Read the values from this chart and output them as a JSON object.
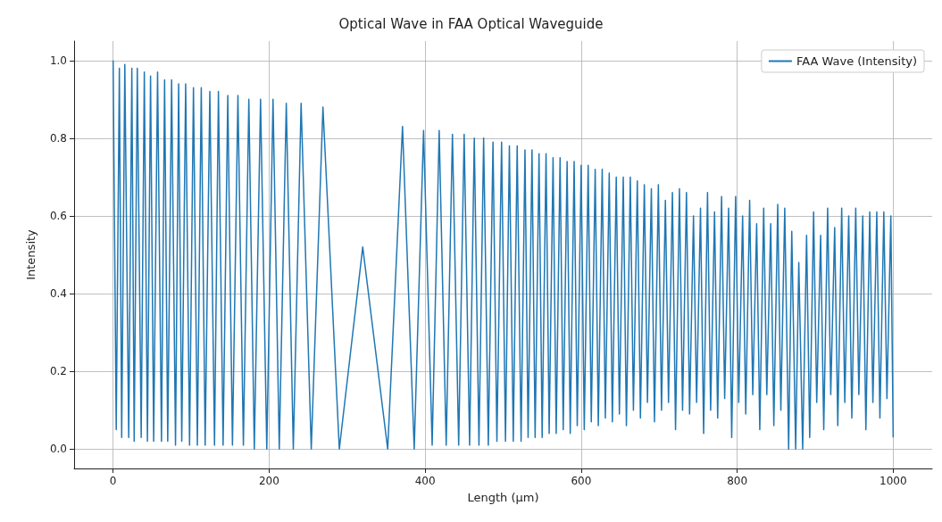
{
  "chart_data": {
    "type": "line",
    "title": "Optical Wave in FAA Optical Waveguide",
    "xlabel": "Length (µm)",
    "ylabel": "Intensity",
    "x": [
      0,
      4,
      8,
      11,
      15,
      20,
      24,
      27,
      31,
      36,
      40,
      44,
      48,
      52,
      57,
      62,
      66,
      70,
      75,
      80,
      84,
      88,
      93,
      98,
      103,
      108,
      113,
      118,
      124,
      130,
      135,
      141,
      147,
      153,
      160,
      167,
      174,
      181,
      189,
      197,
      205,
      213,
      222,
      231,
      241,
      254,
      269,
      290,
      320,
      352,
      371,
      386,
      398,
      409,
      418,
      427,
      435,
      443,
      450,
      457,
      463,
      469,
      475,
      481,
      487,
      492,
      498,
      503,
      508,
      513,
      518,
      523,
      528,
      532,
      537,
      541,
      546,
      550,
      555,
      559,
      564,
      568,
      573,
      577,
      582,
      586,
      591,
      595,
      600,
      604,
      609,
      613,
      618,
      622,
      627,
      631,
      636,
      640,
      645,
      649,
      654,
      658,
      663,
      667,
      672,
      676,
      681,
      685,
      690,
      694,
      699,
      703,
      708,
      712,
      717,
      721,
      726,
      730,
      735,
      739,
      744,
      748,
      753,
      757,
      762,
      766,
      771,
      775,
      780,
      784,
      789,
      793,
      798,
      802,
      807,
      811,
      816,
      820,
      825,
      829,
      834,
      838,
      843,
      847,
      852,
      856,
      861,
      866,
      870,
      875,
      879,
      884,
      889,
      893,
      898,
      902,
      907,
      911,
      916,
      920,
      925,
      929,
      934,
      938,
      943,
      947,
      952,
      956,
      961,
      965,
      970,
      974,
      979,
      983,
      988,
      992,
      997,
      1000
    ],
    "series": [
      {
        "name": "FAA Wave (Intensity)",
        "color": "#1f77b4",
        "values": [
          1.0,
          0.05,
          0.98,
          0.03,
          0.99,
          0.03,
          0.98,
          0.02,
          0.98,
          0.03,
          0.97,
          0.02,
          0.96,
          0.02,
          0.97,
          0.02,
          0.95,
          0.02,
          0.95,
          0.01,
          0.94,
          0.02,
          0.94,
          0.01,
          0.93,
          0.01,
          0.93,
          0.01,
          0.92,
          0.01,
          0.92,
          0.01,
          0.91,
          0.01,
          0.91,
          0.01,
          0.9,
          0,
          0.9,
          0,
          0.9,
          0,
          0.89,
          0,
          0.89,
          0,
          0.88,
          0,
          0.52,
          0,
          0.83,
          0,
          0.82,
          0.01,
          0.82,
          0.01,
          0.81,
          0.01,
          0.81,
          0.01,
          0.8,
          0.01,
          0.8,
          0.01,
          0.79,
          0.02,
          0.79,
          0.02,
          0.78,
          0.02,
          0.78,
          0.02,
          0.77,
          0.03,
          0.77,
          0.03,
          0.76,
          0.03,
          0.76,
          0.04,
          0.75,
          0.04,
          0.75,
          0.05,
          0.74,
          0.04,
          0.74,
          0.06,
          0.73,
          0.05,
          0.73,
          0.07,
          0.72,
          0.06,
          0.72,
          0.08,
          0.71,
          0.07,
          0.7,
          0.09,
          0.7,
          0.06,
          0.7,
          0.1,
          0.69,
          0.08,
          0.68,
          0.12,
          0.67,
          0.07,
          0.68,
          0.1,
          0.64,
          0.12,
          0.66,
          0.05,
          0.67,
          0.1,
          0.66,
          0.09,
          0.6,
          0.12,
          0.62,
          0.04,
          0.66,
          0.1,
          0.61,
          0.08,
          0.65,
          0.13,
          0.62,
          0.03,
          0.65,
          0.12,
          0.6,
          0.09,
          0.64,
          0.14,
          0.58,
          0.05,
          0.62,
          0.14,
          0.58,
          0.06,
          0.63,
          0.1,
          0.62,
          0,
          0.56,
          0,
          0.48,
          0,
          0.55,
          0.03,
          0.61,
          0.12,
          0.55,
          0.05,
          0.62,
          0.14,
          0.57,
          0.06,
          0.62,
          0.12,
          0.6,
          0.08,
          0.62,
          0.14,
          0.6,
          0.05,
          0.61,
          0.12,
          0.61,
          0.08,
          0.61,
          0.13,
          0.6,
          0.03
        ]
      }
    ],
    "xlim": [
      -50,
      1050
    ],
    "xticks": [
      0,
      200,
      400,
      600,
      800,
      1000
    ],
    "ylim": [
      -0.05,
      1.05
    ],
    "yticks": [
      {
        "value": 0,
        "label": "0.0"
      },
      {
        "value": 0.2,
        "label": "0.2"
      },
      {
        "value": 0.4,
        "label": "0.4"
      },
      {
        "value": 0.6,
        "label": "0.6"
      },
      {
        "value": 0.8,
        "label": "0.8"
      },
      {
        "value": 1,
        "label": "1.0"
      }
    ],
    "grid": true,
    "legend": "top right",
    "marker": "none",
    "line_style": "solid"
  }
}
